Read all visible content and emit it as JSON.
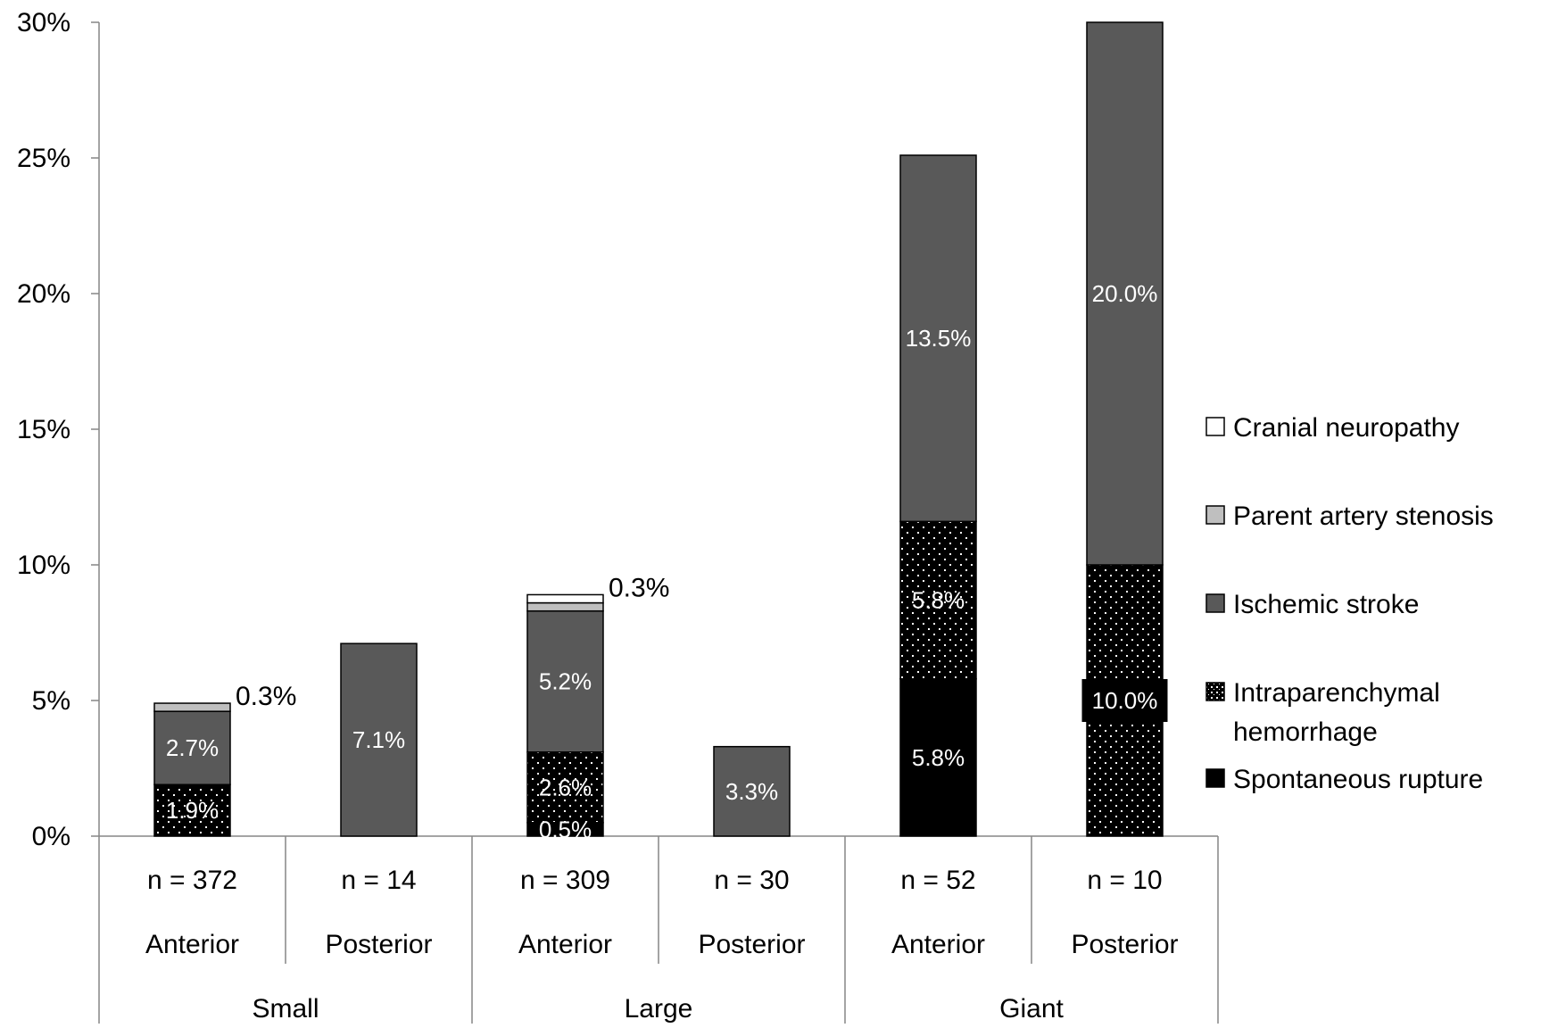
{
  "chart_data": {
    "type": "bar",
    "stacked": true,
    "ylim": [
      0,
      30
    ],
    "y_ticks": [
      "0%",
      "5%",
      "10%",
      "15%",
      "20%",
      "25%",
      "30%"
    ],
    "grid": false,
    "legend_position": "right",
    "categories": [
      {
        "count": "n = 372",
        "location": "Anterior",
        "size": "Small"
      },
      {
        "count": "n = 14",
        "location": "Posterior",
        "size": "Small"
      },
      {
        "count": "n = 309",
        "location": "Anterior",
        "size": "Large"
      },
      {
        "count": "n = 30",
        "location": "Posterior",
        "size": "Large"
      },
      {
        "count": "n = 52",
        "location": "Anterior",
        "size": "Giant"
      },
      {
        "count": "n = 10",
        "location": "Posterior",
        "size": "Giant"
      }
    ],
    "groups": [
      "Small",
      "Large",
      "Giant"
    ],
    "series": [
      {
        "name": "Spontaneous rupture",
        "fill": "#000000",
        "values": [
          0,
          0,
          0.5,
          0,
          5.8,
          0
        ]
      },
      {
        "name": "Intraparenchymal hemorrhage",
        "fill": "dots",
        "values": [
          1.9,
          0,
          2.6,
          0,
          5.8,
          10.0
        ]
      },
      {
        "name": "Ischemic stroke",
        "fill": "#595959",
        "values": [
          2.7,
          7.1,
          5.2,
          3.3,
          13.5,
          20.0
        ]
      },
      {
        "name": "Parent artery stenosis",
        "fill": "#bfbfbf",
        "values": [
          0.3,
          0,
          0.3,
          0,
          0,
          0
        ]
      },
      {
        "name": "Cranial neuropathy",
        "fill": "#ffffff",
        "values": [
          0,
          0,
          0.3,
          0,
          0,
          0
        ]
      }
    ],
    "legend_order": [
      "Cranial neuropathy",
      "Parent artery stenosis",
      "Ischemic stroke",
      "Intraparenchymal hemorrhage",
      "Spontaneous rupture"
    ],
    "data_labels": [
      {
        "category": 0,
        "series": "Intraparenchymal hemorrhage",
        "text": "1.9%"
      },
      {
        "category": 0,
        "series": "Ischemic stroke",
        "text": "2.7%"
      },
      {
        "category": 0,
        "series": "Parent artery stenosis",
        "text": "0.3%",
        "outside": true
      },
      {
        "category": 1,
        "series": "Ischemic stroke",
        "text": "7.1%"
      },
      {
        "category": 2,
        "series": "Spontaneous rupture",
        "text": "0.5%"
      },
      {
        "category": 2,
        "series": "Intraparenchymal hemorrhage",
        "text": "2.6%"
      },
      {
        "category": 2,
        "series": "Ischemic stroke",
        "text": "5.2%"
      },
      {
        "category": 2,
        "series": "Cranial neuropathy",
        "text": "0.3%",
        "outside": true
      },
      {
        "category": 3,
        "series": "Ischemic stroke",
        "text": "3.3%"
      },
      {
        "category": 4,
        "series": "Spontaneous rupture",
        "text": "5.8%"
      },
      {
        "category": 4,
        "series": "Intraparenchymal hemorrhage",
        "text": "5.8%"
      },
      {
        "category": 4,
        "series": "Ischemic stroke",
        "text": "13.5%"
      },
      {
        "category": 5,
        "series": "Intraparenchymal hemorrhage",
        "text": "10.0%",
        "boxed": true
      },
      {
        "category": 5,
        "series": "Ischemic stroke",
        "text": "20.0%"
      }
    ]
  }
}
